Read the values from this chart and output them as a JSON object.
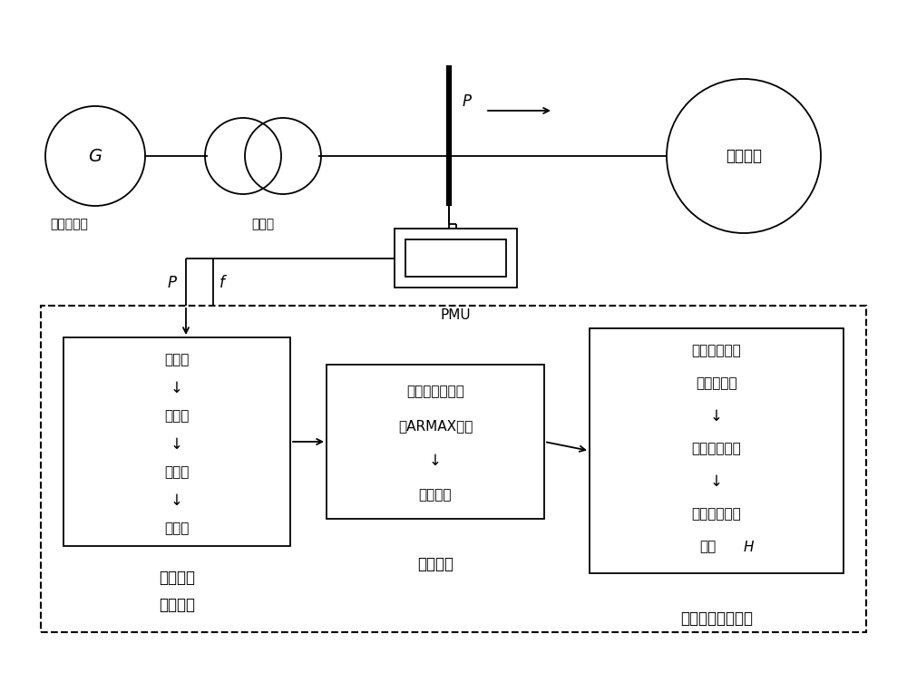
{
  "bg_color": "#ffffff",
  "line_color": "#000000",
  "box1_label_lines": [
    "标幺化",
    "↓",
    "去均值",
    "↓",
    "预滤波",
    "↓",
    "再采样"
  ],
  "box1_caption_line1": "信号选择",
  "box1_caption_line2": "与预处理",
  "box2_label_lines": [
    "辨识等值同步机",
    "的ARMAX模型",
    "↓",
    "交叉验证"
  ],
  "box2_caption": "系统辨识",
  "box3_label_lines": [
    "对模型施加单",
    "位阶跃信号",
    "↓",
    "计算初始斜率",
    "↓",
    "提取等值惯性",
    "常数H"
  ],
  "box3_caption": "等值惯性常数提取",
  "generator_label": "G",
  "transformer_label": "变压器",
  "equiv_label": "等值同步机",
  "power_system_label": "电力系统",
  "pmu_label": "PMU",
  "P_label": "P",
  "f_label": "f",
  "H_label": "H"
}
